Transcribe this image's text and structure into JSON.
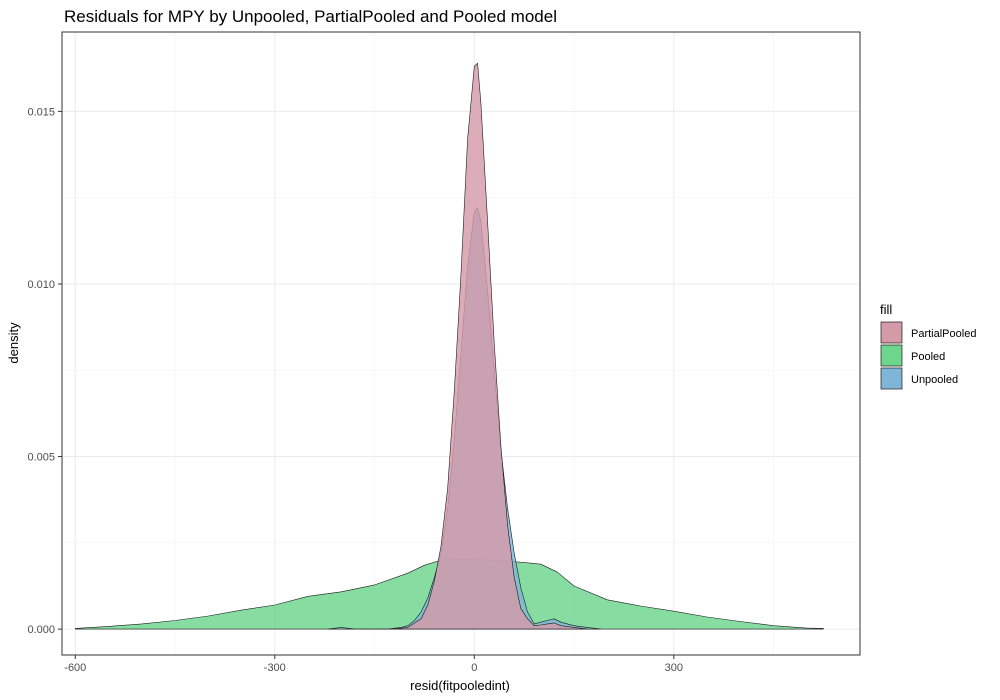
{
  "chart_data": {
    "type": "area",
    "title": "Residuals for MPY by Unpooled, PartialPooled and Pooled model",
    "xlabel": "resid(fitpooledint)",
    "ylabel": "density",
    "xlim": [
      -620,
      580
    ],
    "ylim": [
      -0.00075,
      0.0173
    ],
    "x_ticks": [
      -600,
      -300,
      0,
      300
    ],
    "x_tick_labels": [
      "-600",
      "-300",
      "0",
      "300"
    ],
    "y_ticks": [
      0.0,
      0.005,
      0.01,
      0.015
    ],
    "y_tick_labels": [
      "0.000",
      "0.005",
      "0.010",
      "0.015"
    ],
    "grid": true,
    "legend": {
      "title": "fill",
      "position": "right",
      "items": [
        "PartialPooled",
        "Pooled",
        "Unpooled"
      ]
    },
    "series": [
      {
        "name": "Pooled",
        "color": "#6dd58c",
        "x": [
          -600,
          -550,
          -500,
          -450,
          -400,
          -350,
          -300,
          -250,
          -200,
          -150,
          -100,
          -75,
          -50,
          -30,
          -10,
          0,
          20,
          50,
          80,
          100,
          125,
          150,
          200,
          250,
          300,
          350,
          400,
          450,
          500,
          525
        ],
        "y": [
          2e-05,
          8e-05,
          0.00015,
          0.00025,
          0.00038,
          0.00055,
          0.0007,
          0.00095,
          0.00108,
          0.00128,
          0.00162,
          0.00185,
          0.002,
          0.00203,
          0.00203,
          0.00203,
          0.002,
          0.00197,
          0.00192,
          0.00188,
          0.00165,
          0.00125,
          0.00085,
          0.00067,
          0.00052,
          0.00035,
          0.00022,
          0.0001,
          3e-05,
          2e-05
        ]
      },
      {
        "name": "Unpooled",
        "color": "#7fb6d8",
        "x": [
          -220,
          -200,
          -180,
          -150,
          -130,
          -110,
          -100,
          -90,
          -80,
          -70,
          -60,
          -50,
          -40,
          -30,
          -20,
          -10,
          0,
          5,
          10,
          20,
          30,
          40,
          50,
          60,
          70,
          80,
          90,
          100,
          110,
          120,
          130,
          140,
          150,
          170,
          190
        ],
        "y": [
          0.0,
          5e-05,
          0.0,
          0.0,
          0.0,
          5e-05,
          0.0001,
          0.00025,
          0.0005,
          0.0009,
          0.0015,
          0.0022,
          0.0035,
          0.0055,
          0.008,
          0.0105,
          0.0121,
          0.0122,
          0.0118,
          0.0098,
          0.0075,
          0.0052,
          0.0035,
          0.0022,
          0.0012,
          0.0005,
          0.00015,
          0.0002,
          0.00025,
          0.0003,
          0.0002,
          0.00015,
          0.0001,
          5e-05,
          0.0
        ]
      },
      {
        "name": "PartialPooled",
        "color": "#d49aa8",
        "x": [
          -120,
          -100,
          -80,
          -70,
          -60,
          -50,
          -40,
          -30,
          -20,
          -10,
          0,
          5,
          10,
          20,
          30,
          40,
          50,
          60,
          70,
          80,
          90,
          100,
          110,
          120,
          130,
          150,
          170
        ],
        "y": [
          0.0,
          5e-05,
          0.0003,
          0.0007,
          0.0014,
          0.0024,
          0.0041,
          0.0069,
          0.0103,
          0.0142,
          0.0163,
          0.0164,
          0.0152,
          0.0118,
          0.0083,
          0.0053,
          0.003,
          0.0015,
          0.0006,
          0.0003,
          0.0001,
          0.00012,
          0.00015,
          0.00018,
          0.0001,
          5e-05,
          0.0
        ]
      }
    ]
  }
}
